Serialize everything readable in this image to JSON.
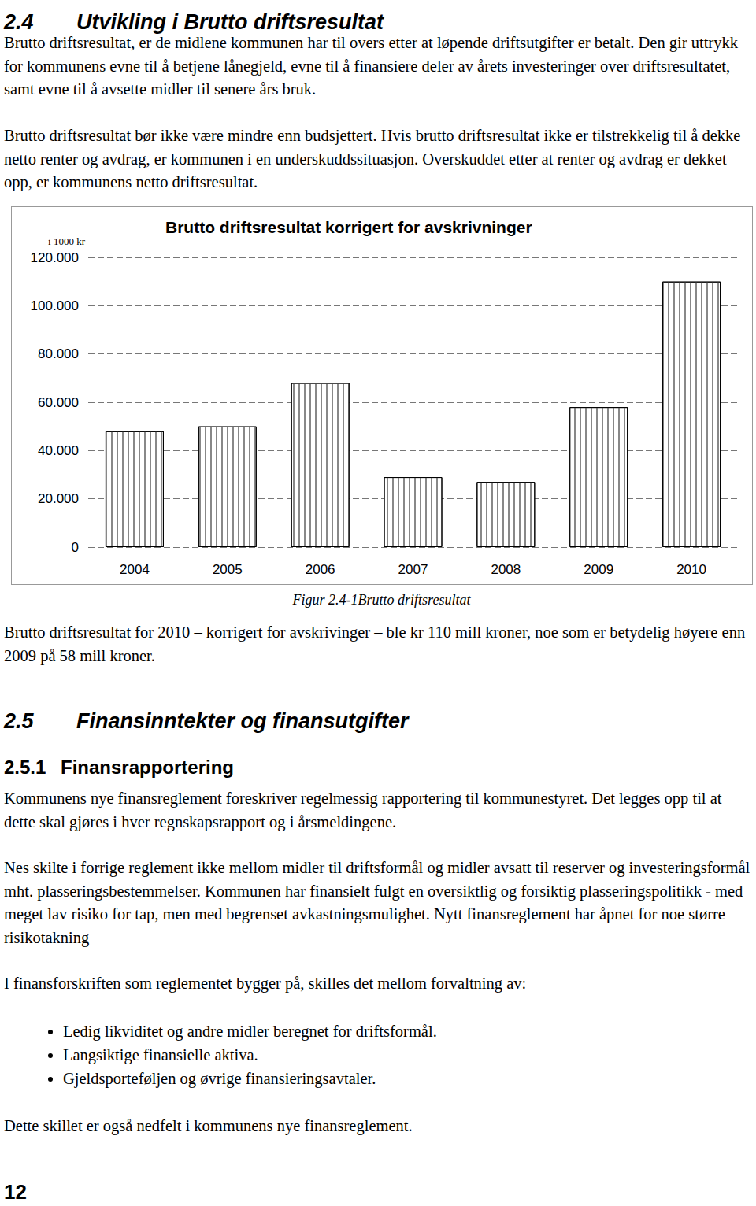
{
  "document": {
    "blocks": [
      {
        "kind": "h2",
        "number": "2.4",
        "title": "Utvikling i Brutto driftsresultat"
      },
      {
        "kind": "p",
        "text": "Brutto driftsresultat, er de midlene kommunen har til overs etter at løpende driftsutgifter er betalt. Den gir uttrykk for kommunens evne til å betjene lånegjeld, evne til å finansiere deler av årets investeringer over driftsresultatet, samt evne til å avsette midler til senere års bruk."
      },
      {
        "kind": "p",
        "text": "Brutto driftsresultat bør ikke være mindre enn budsjettert. Hvis brutto driftsresultat ikke er tilstrekkelig til å dekke netto renter og avdrag, er kommunen i en underskuddssituasjon. Overskuddet etter at renter og avdrag er dekket opp, er kommunens netto driftsresultat."
      },
      {
        "kind": "chart"
      },
      {
        "kind": "caption",
        "text": "Figur 2.4-1Brutto driftsresultat"
      },
      {
        "kind": "p",
        "text": "Brutto driftsresultat for 2010 – korrigert for avskrivinger – ble kr 110 mill kroner, noe som er betydelig høyere enn 2009 på 58 mill kroner."
      },
      {
        "kind": "h2",
        "number": "2.5",
        "title": "Finansinntekter og finansutgifter"
      },
      {
        "kind": "h3",
        "number": "2.5.1",
        "title": "Finansrapportering"
      },
      {
        "kind": "p",
        "text": "Kommunens nye finansreglement foreskriver regelmessig rapportering til kommunestyret. Det legges opp til at dette skal gjøres i hver regnskapsrapport og i årsmeldingene."
      },
      {
        "kind": "p",
        "text": "Nes skilte i forrige reglement ikke mellom midler til driftsformål og midler avsatt til reserver og investeringsformål mht. plasseringsbestemmelser. Kommunen har finansielt fulgt en oversiktlig og forsiktig plasseringspolitikk - med meget lav risiko for tap, men med begrenset avkastningsmulighet. Nytt finansreglement har åpnet for noe større risikotakning"
      },
      {
        "kind": "p",
        "text": "I finansforskriften som reglementet bygger på, skilles det mellom forvaltning av:"
      },
      {
        "kind": "list",
        "items": [
          "Ledig likviditet og andre midler beregnet for driftsformål.",
          "Langsiktige finansielle aktiva.",
          "Gjeldsporteføljen og øvrige finansieringsavtaler."
        ]
      },
      {
        "kind": "p",
        "text": "Dette skillet er også nedfelt i kommunens nye finansreglement."
      },
      {
        "kind": "page",
        "text": "12"
      }
    ]
  },
  "chart_data": {
    "type": "bar",
    "title": "Brutto driftsresultat korrigert for avskrivninger",
    "y_label": "i 1000 kr",
    "categories": [
      "2004",
      "2005",
      "2006",
      "2007",
      "2008",
      "2009",
      "2010"
    ],
    "values": [
      48000,
      50000,
      68000,
      29000,
      27000,
      58000,
      110000
    ],
    "color": "#ffffff",
    "ylim": [
      0,
      120000
    ],
    "yticks": [
      0,
      {
        "value": 20000,
        "label": "20.000"
      },
      {
        "value": 40000,
        "label": "40.000"
      },
      {
        "value": 60000,
        "label": "60.000"
      },
      {
        "value": 80000,
        "label": "80.000"
      },
      {
        "value": 100000,
        "label": "100.000"
      },
      {
        "value": 120000,
        "label": "120.000"
      }
    ],
    "grid": true
  }
}
